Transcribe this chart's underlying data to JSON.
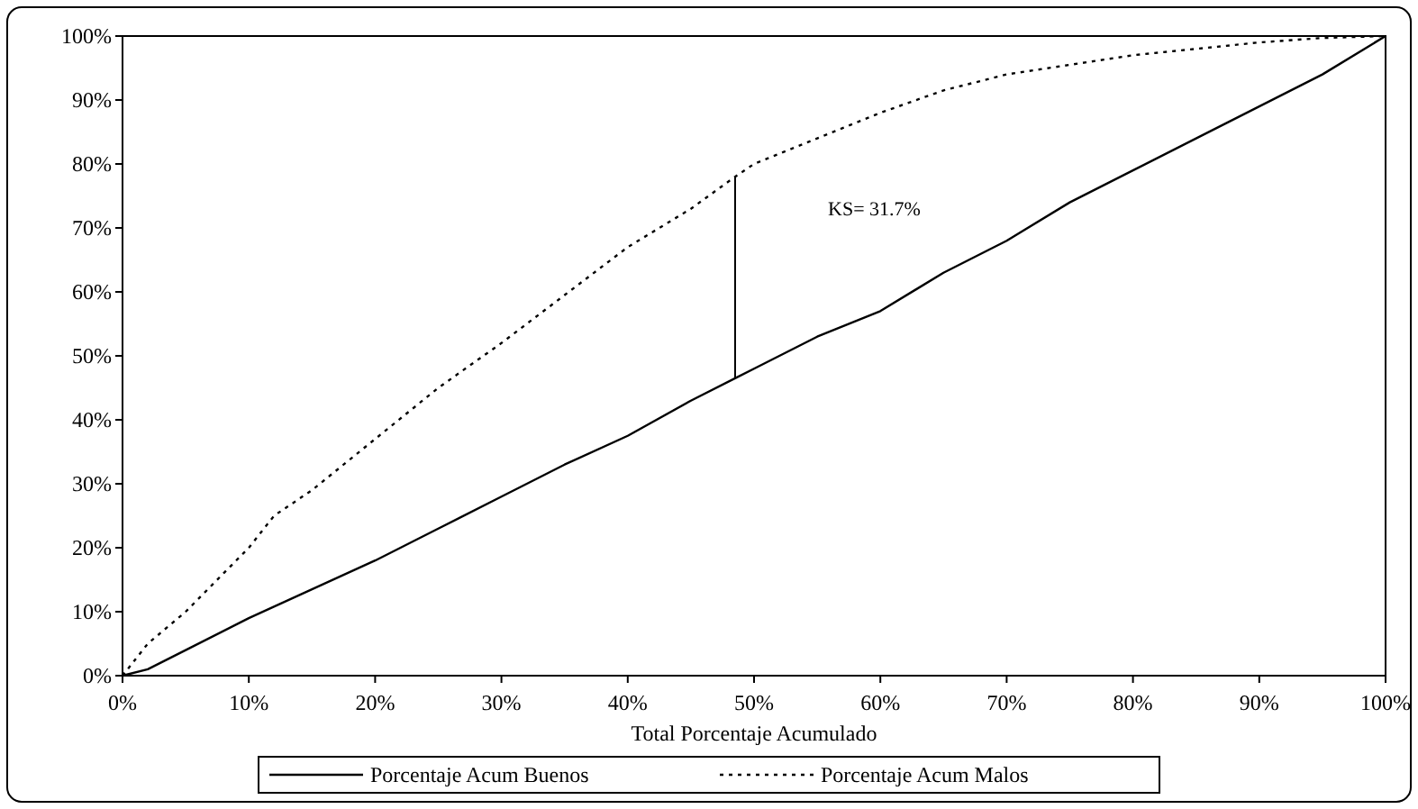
{
  "chart_data": {
    "type": "line",
    "xlabel": "Total Porcentaje Acumulado",
    "xlim": [
      0,
      100
    ],
    "ylim": [
      0,
      100
    ],
    "xticks": [
      {
        "value": 0,
        "label": "0%"
      },
      {
        "value": 10,
        "label": "10%"
      },
      {
        "value": 20,
        "label": "20%"
      },
      {
        "value": 30,
        "label": "30%"
      },
      {
        "value": 40,
        "label": "40%"
      },
      {
        "value": 50,
        "label": "50%"
      },
      {
        "value": 60,
        "label": "60%"
      },
      {
        "value": 70,
        "label": "70%"
      },
      {
        "value": 80,
        "label": "80%"
      },
      {
        "value": 90,
        "label": "90%"
      },
      {
        "value": 100,
        "label": "100%"
      }
    ],
    "yticks": [
      {
        "value": 0,
        "label": "0%"
      },
      {
        "value": 10,
        "label": "10%"
      },
      {
        "value": 20,
        "label": "20%"
      },
      {
        "value": 30,
        "label": "30%"
      },
      {
        "value": 40,
        "label": "40%"
      },
      {
        "value": 50,
        "label": "50%"
      },
      {
        "value": 60,
        "label": "60%"
      },
      {
        "value": 70,
        "label": "70%"
      },
      {
        "value": 80,
        "label": "80%"
      },
      {
        "value": 90,
        "label": "90%"
      },
      {
        "value": 100,
        "label": "100%"
      }
    ],
    "series": [
      {
        "name": "Porcentaje Acum Buenos",
        "color": "#000000",
        "line_style": "solid",
        "x": [
          0,
          2,
          5,
          10,
          15,
          20,
          25,
          30,
          35,
          40,
          45,
          48.5,
          50,
          55,
          60,
          65,
          70,
          75,
          80,
          85,
          90,
          95,
          100
        ],
        "values": [
          0,
          1,
          4,
          9,
          13.5,
          18,
          23,
          28,
          33,
          37.5,
          43,
          46.5,
          48,
          53,
          57,
          63,
          68,
          74,
          79,
          84,
          89,
          94,
          100
        ]
      },
      {
        "name": "Porcentaje Acum Malos",
        "color": "#000000",
        "line_style": "dotted",
        "x": [
          0,
          2,
          5,
          8,
          10,
          12,
          15,
          20,
          25,
          30,
          35,
          40,
          45,
          48.5,
          50,
          55,
          60,
          65,
          70,
          75,
          80,
          85,
          90,
          95,
          100
        ],
        "values": [
          0,
          5,
          10,
          16,
          20,
          25,
          29,
          37,
          45,
          52,
          59.5,
          67,
          73,
          78,
          80,
          84,
          88,
          91.5,
          94,
          95.5,
          97,
          98,
          99,
          99.7,
          100
        ]
      }
    ],
    "ref_lines": [
      {
        "axis": "x",
        "value": 48.5,
        "color": "#000000"
      }
    ],
    "annotations": [
      "KS= 31.7%"
    ],
    "legend": "bottom",
    "marker": "none",
    "grid": false
  }
}
